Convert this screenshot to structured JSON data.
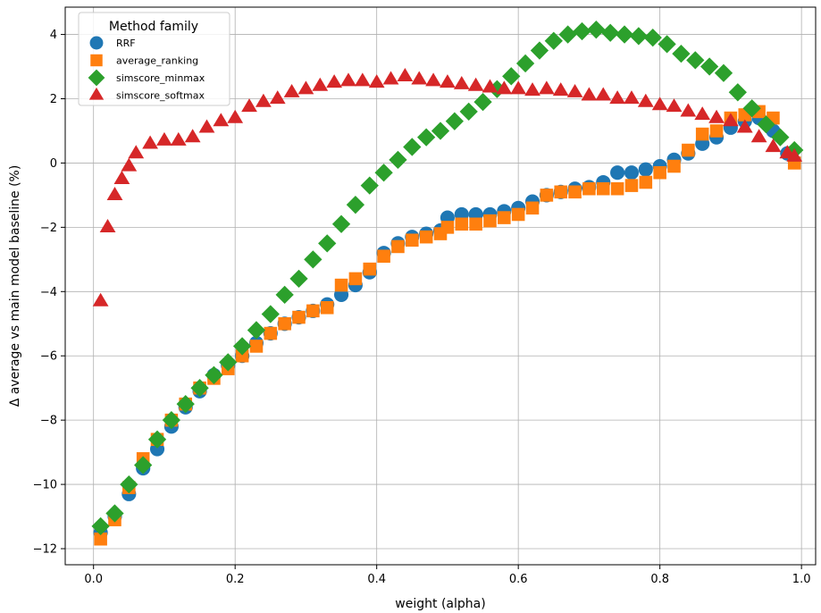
{
  "chart_data": {
    "type": "scatter",
    "xlabel": "weight (alpha)",
    "ylabel": "Δ average vs main model baseline (%)",
    "xlim": [
      -0.04,
      1.02
    ],
    "ylim": [
      -12.5,
      4.85
    ],
    "xticks": [
      0.0,
      0.2,
      0.4,
      0.6,
      0.8,
      1.0
    ],
    "xtick_labels": [
      "0.0",
      "0.2",
      "0.4",
      "0.6",
      "0.8",
      "1.0"
    ],
    "yticks": [
      -12,
      -10,
      -8,
      -6,
      -4,
      -2,
      0,
      2,
      4
    ],
    "ytick_labels": [
      "−12",
      "−10",
      "−8",
      "−6",
      "−4",
      "−2",
      "0",
      "2",
      "4"
    ],
    "grid": true,
    "legend": {
      "title": "Method family",
      "placement": "top-left"
    },
    "series": [
      {
        "name": "RRF",
        "marker": "circle",
        "color": "#1f77b4",
        "points": [
          [
            0.01,
            -11.5
          ],
          [
            0.03,
            -11.0
          ],
          [
            0.05,
            -10.3
          ],
          [
            0.07,
            -9.5
          ],
          [
            0.09,
            -8.9
          ],
          [
            0.11,
            -8.2
          ],
          [
            0.13,
            -7.6
          ],
          [
            0.15,
            -7.1
          ],
          [
            0.17,
            -6.6
          ],
          [
            0.19,
            -6.3
          ],
          [
            0.21,
            -6.0
          ],
          [
            0.23,
            -5.6
          ],
          [
            0.25,
            -5.3
          ],
          [
            0.27,
            -5.0
          ],
          [
            0.29,
            -4.8
          ],
          [
            0.31,
            -4.6
          ],
          [
            0.33,
            -4.4
          ],
          [
            0.35,
            -4.1
          ],
          [
            0.37,
            -3.8
          ],
          [
            0.39,
            -3.4
          ],
          [
            0.41,
            -2.8
          ],
          [
            0.43,
            -2.5
          ],
          [
            0.45,
            -2.3
          ],
          [
            0.47,
            -2.2
          ],
          [
            0.49,
            -2.1
          ],
          [
            0.5,
            -1.7
          ],
          [
            0.52,
            -1.6
          ],
          [
            0.54,
            -1.6
          ],
          [
            0.56,
            -1.6
          ],
          [
            0.58,
            -1.5
          ],
          [
            0.6,
            -1.4
          ],
          [
            0.62,
            -1.2
          ],
          [
            0.64,
            -1.0
          ],
          [
            0.66,
            -0.9
          ],
          [
            0.68,
            -0.8
          ],
          [
            0.7,
            -0.75
          ],
          [
            0.72,
            -0.6
          ],
          [
            0.74,
            -0.3
          ],
          [
            0.76,
            -0.3
          ],
          [
            0.78,
            -0.2
          ],
          [
            0.8,
            -0.1
          ],
          [
            0.82,
            0.1
          ],
          [
            0.84,
            0.3
          ],
          [
            0.86,
            0.6
          ],
          [
            0.88,
            0.8
          ],
          [
            0.9,
            1.1
          ],
          [
            0.92,
            1.3
          ],
          [
            0.94,
            1.4
          ],
          [
            0.96,
            1.0
          ],
          [
            0.98,
            0.3
          ]
        ]
      },
      {
        "name": "average_ranking",
        "marker": "square",
        "color": "#ff7f0e",
        "points": [
          [
            0.01,
            -11.7
          ],
          [
            0.03,
            -11.1
          ],
          [
            0.05,
            -10.1
          ],
          [
            0.07,
            -9.2
          ],
          [
            0.09,
            -8.6
          ],
          [
            0.11,
            -8.0
          ],
          [
            0.13,
            -7.5
          ],
          [
            0.15,
            -7.0
          ],
          [
            0.17,
            -6.7
          ],
          [
            0.19,
            -6.4
          ],
          [
            0.21,
            -6.0
          ],
          [
            0.23,
            -5.7
          ],
          [
            0.25,
            -5.3
          ],
          [
            0.27,
            -5.0
          ],
          [
            0.29,
            -4.8
          ],
          [
            0.31,
            -4.6
          ],
          [
            0.33,
            -4.5
          ],
          [
            0.35,
            -3.8
          ],
          [
            0.37,
            -3.6
          ],
          [
            0.39,
            -3.3
          ],
          [
            0.41,
            -2.9
          ],
          [
            0.43,
            -2.6
          ],
          [
            0.45,
            -2.4
          ],
          [
            0.47,
            -2.3
          ],
          [
            0.49,
            -2.2
          ],
          [
            0.5,
            -2.0
          ],
          [
            0.52,
            -1.9
          ],
          [
            0.54,
            -1.9
          ],
          [
            0.56,
            -1.8
          ],
          [
            0.58,
            -1.7
          ],
          [
            0.6,
            -1.6
          ],
          [
            0.62,
            -1.4
          ],
          [
            0.64,
            -1.0
          ],
          [
            0.66,
            -0.9
          ],
          [
            0.68,
            -0.9
          ],
          [
            0.7,
            -0.8
          ],
          [
            0.72,
            -0.8
          ],
          [
            0.74,
            -0.8
          ],
          [
            0.76,
            -0.7
          ],
          [
            0.78,
            -0.6
          ],
          [
            0.8,
            -0.3
          ],
          [
            0.82,
            -0.1
          ],
          [
            0.84,
            0.4
          ],
          [
            0.86,
            0.9
          ],
          [
            0.88,
            1.0
          ],
          [
            0.9,
            1.4
          ],
          [
            0.92,
            1.5
          ],
          [
            0.94,
            1.6
          ],
          [
            0.96,
            1.4
          ],
          [
            0.99,
            0.0
          ]
        ]
      },
      {
        "name": "simscore_minmax",
        "marker": "diamond",
        "color": "#2ca02c",
        "points": [
          [
            0.01,
            -11.3
          ],
          [
            0.03,
            -10.9
          ],
          [
            0.05,
            -10.0
          ],
          [
            0.07,
            -9.4
          ],
          [
            0.09,
            -8.6
          ],
          [
            0.11,
            -8.0
          ],
          [
            0.13,
            -7.5
          ],
          [
            0.15,
            -7.0
          ],
          [
            0.17,
            -6.6
          ],
          [
            0.19,
            -6.2
          ],
          [
            0.21,
            -5.7
          ],
          [
            0.23,
            -5.2
          ],
          [
            0.25,
            -4.7
          ],
          [
            0.27,
            -4.1
          ],
          [
            0.29,
            -3.6
          ],
          [
            0.31,
            -3.0
          ],
          [
            0.33,
            -2.5
          ],
          [
            0.35,
            -1.9
          ],
          [
            0.37,
            -1.3
          ],
          [
            0.39,
            -0.7
          ],
          [
            0.41,
            -0.3
          ],
          [
            0.43,
            0.1
          ],
          [
            0.45,
            0.5
          ],
          [
            0.47,
            0.8
          ],
          [
            0.49,
            1.0
          ],
          [
            0.51,
            1.3
          ],
          [
            0.53,
            1.6
          ],
          [
            0.55,
            1.9
          ],
          [
            0.57,
            2.3
          ],
          [
            0.59,
            2.7
          ],
          [
            0.61,
            3.1
          ],
          [
            0.63,
            3.5
          ],
          [
            0.65,
            3.8
          ],
          [
            0.67,
            4.0
          ],
          [
            0.69,
            4.1
          ],
          [
            0.71,
            4.15
          ],
          [
            0.73,
            4.05
          ],
          [
            0.75,
            4.0
          ],
          [
            0.77,
            3.95
          ],
          [
            0.79,
            3.9
          ],
          [
            0.81,
            3.7
          ],
          [
            0.83,
            3.4
          ],
          [
            0.85,
            3.2
          ],
          [
            0.87,
            3.0
          ],
          [
            0.89,
            2.8
          ],
          [
            0.91,
            2.2
          ],
          [
            0.93,
            1.7
          ],
          [
            0.95,
            1.2
          ],
          [
            0.97,
            0.8
          ],
          [
            0.99,
            0.4
          ]
        ]
      },
      {
        "name": "simscore_softmax",
        "marker": "triangle",
        "color": "#d62728",
        "points": [
          [
            0.01,
            -4.3
          ],
          [
            0.02,
            -2.0
          ],
          [
            0.03,
            -1.0
          ],
          [
            0.04,
            -0.5
          ],
          [
            0.05,
            -0.1
          ],
          [
            0.06,
            0.3
          ],
          [
            0.08,
            0.6
          ],
          [
            0.1,
            0.7
          ],
          [
            0.12,
            0.7
          ],
          [
            0.14,
            0.8
          ],
          [
            0.16,
            1.1
          ],
          [
            0.18,
            1.3
          ],
          [
            0.2,
            1.4
          ],
          [
            0.22,
            1.75
          ],
          [
            0.24,
            1.9
          ],
          [
            0.26,
            2.0
          ],
          [
            0.28,
            2.2
          ],
          [
            0.3,
            2.3
          ],
          [
            0.32,
            2.4
          ],
          [
            0.34,
            2.5
          ],
          [
            0.36,
            2.55
          ],
          [
            0.38,
            2.55
          ],
          [
            0.4,
            2.5
          ],
          [
            0.42,
            2.6
          ],
          [
            0.44,
            2.7
          ],
          [
            0.46,
            2.6
          ],
          [
            0.48,
            2.55
          ],
          [
            0.5,
            2.5
          ],
          [
            0.52,
            2.45
          ],
          [
            0.54,
            2.4
          ],
          [
            0.56,
            2.35
          ],
          [
            0.58,
            2.3
          ],
          [
            0.6,
            2.3
          ],
          [
            0.62,
            2.25
          ],
          [
            0.64,
            2.3
          ],
          [
            0.66,
            2.25
          ],
          [
            0.68,
            2.2
          ],
          [
            0.7,
            2.1
          ],
          [
            0.72,
            2.1
          ],
          [
            0.74,
            2.0
          ],
          [
            0.76,
            2.0
          ],
          [
            0.78,
            1.9
          ],
          [
            0.8,
            1.8
          ],
          [
            0.82,
            1.75
          ],
          [
            0.84,
            1.6
          ],
          [
            0.86,
            1.5
          ],
          [
            0.88,
            1.4
          ],
          [
            0.9,
            1.3
          ],
          [
            0.92,
            1.1
          ],
          [
            0.94,
            0.8
          ],
          [
            0.96,
            0.5
          ],
          [
            0.98,
            0.3
          ],
          [
            0.99,
            0.2
          ]
        ]
      }
    ]
  }
}
